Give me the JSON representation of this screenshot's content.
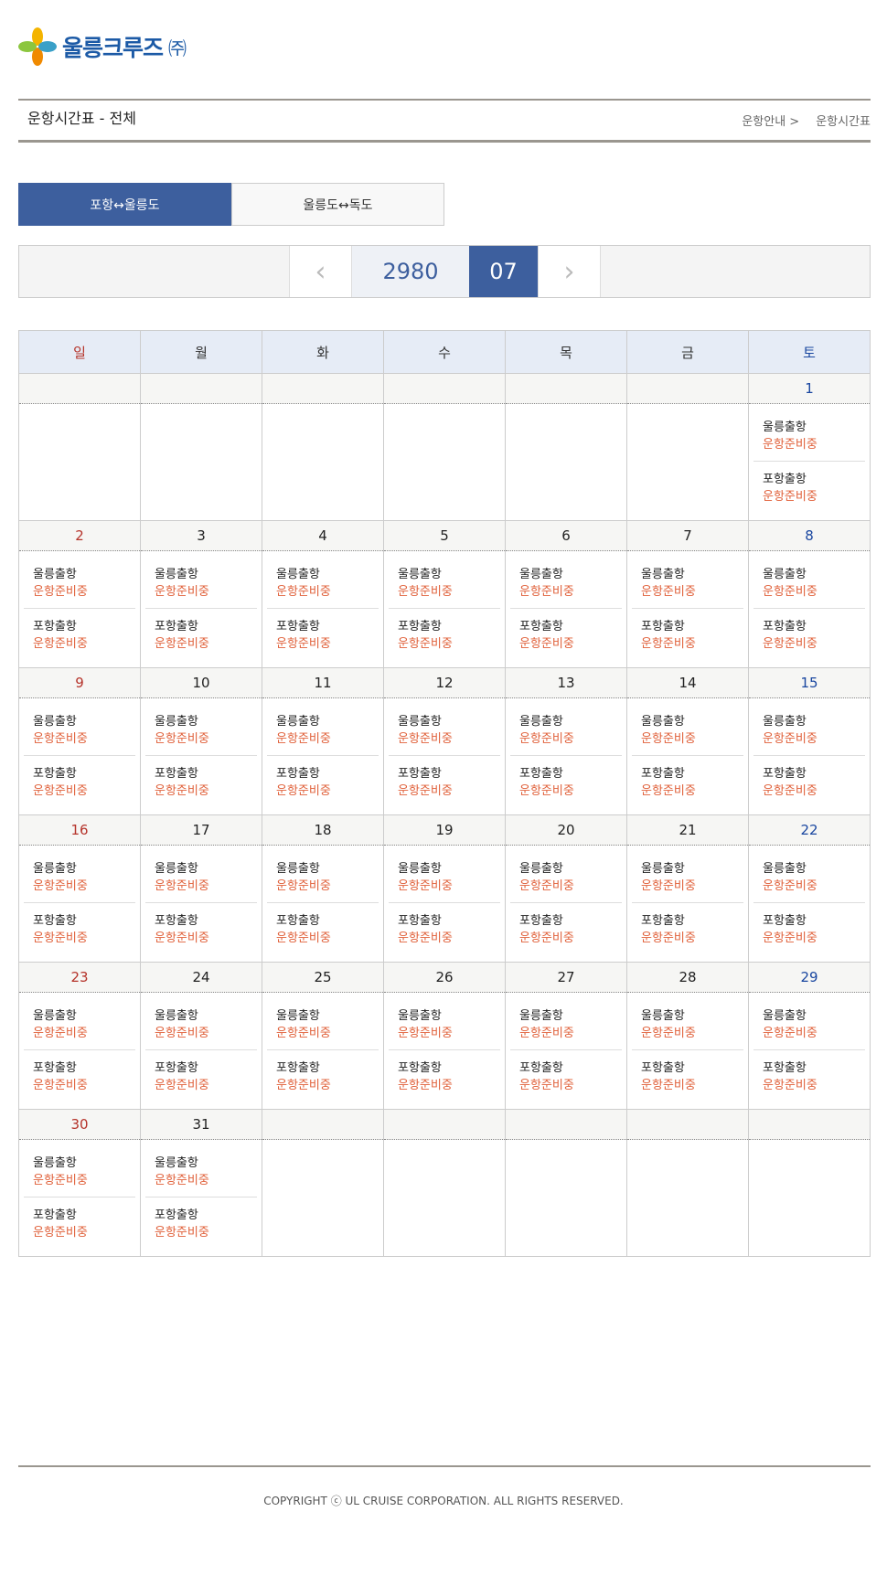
{
  "logo": {
    "text": "울릉크루즈",
    "suffix": "㈜"
  },
  "header": {
    "title": "운항시간표 - 전체",
    "breadcrumb": [
      "운항안내 >",
      "운항시간표"
    ]
  },
  "tabs": [
    {
      "label": "포항↔울릉도",
      "active": true
    },
    {
      "label": "울릉도↔독도",
      "active": false
    }
  ],
  "nav": {
    "prev_icon": "chevron-left-icon",
    "next_icon": "chevron-right-icon",
    "year": "2980",
    "month": "07"
  },
  "colors": {
    "accent": "#3d5f9e",
    "sunday": "#b5332a",
    "saturday": "#1a47a0",
    "status": "#e0603a"
  },
  "calendar": {
    "weekdays": [
      "일",
      "월",
      "화",
      "수",
      "목",
      "금",
      "토"
    ],
    "weeks": [
      [
        null,
        null,
        null,
        null,
        null,
        null,
        {
          "day": "1",
          "trips": [
            {
              "label": "울릉출항",
              "status": "운항준비중"
            },
            {
              "label": "포항출항",
              "status": "운항준비중"
            }
          ]
        }
      ],
      [
        {
          "day": "2",
          "trips": [
            {
              "label": "울릉출항",
              "status": "운항준비중"
            },
            {
              "label": "포항출항",
              "status": "운항준비중"
            }
          ]
        },
        {
          "day": "3",
          "trips": [
            {
              "label": "울릉출항",
              "status": "운항준비중"
            },
            {
              "label": "포항출항",
              "status": "운항준비중"
            }
          ]
        },
        {
          "day": "4",
          "trips": [
            {
              "label": "울릉출항",
              "status": "운항준비중"
            },
            {
              "label": "포항출항",
              "status": "운항준비중"
            }
          ]
        },
        {
          "day": "5",
          "trips": [
            {
              "label": "울릉출항",
              "status": "운항준비중"
            },
            {
              "label": "포항출항",
              "status": "운항준비중"
            }
          ]
        },
        {
          "day": "6",
          "trips": [
            {
              "label": "울릉출항",
              "status": "운항준비중"
            },
            {
              "label": "포항출항",
              "status": "운항준비중"
            }
          ]
        },
        {
          "day": "7",
          "trips": [
            {
              "label": "울릉출항",
              "status": "운항준비중"
            },
            {
              "label": "포항출항",
              "status": "운항준비중"
            }
          ]
        },
        {
          "day": "8",
          "trips": [
            {
              "label": "울릉출항",
              "status": "운항준비중"
            },
            {
              "label": "포항출항",
              "status": "운항준비중"
            }
          ]
        }
      ],
      [
        {
          "day": "9",
          "trips": [
            {
              "label": "울릉출항",
              "status": "운항준비중"
            },
            {
              "label": "포항출항",
              "status": "운항준비중"
            }
          ]
        },
        {
          "day": "10",
          "trips": [
            {
              "label": "울릉출항",
              "status": "운항준비중"
            },
            {
              "label": "포항출항",
              "status": "운항준비중"
            }
          ]
        },
        {
          "day": "11",
          "trips": [
            {
              "label": "울릉출항",
              "status": "운항준비중"
            },
            {
              "label": "포항출항",
              "status": "운항준비중"
            }
          ]
        },
        {
          "day": "12",
          "trips": [
            {
              "label": "울릉출항",
              "status": "운항준비중"
            },
            {
              "label": "포항출항",
              "status": "운항준비중"
            }
          ]
        },
        {
          "day": "13",
          "trips": [
            {
              "label": "울릉출항",
              "status": "운항준비중"
            },
            {
              "label": "포항출항",
              "status": "운항준비중"
            }
          ]
        },
        {
          "day": "14",
          "trips": [
            {
              "label": "울릉출항",
              "status": "운항준비중"
            },
            {
              "label": "포항출항",
              "status": "운항준비중"
            }
          ]
        },
        {
          "day": "15",
          "trips": [
            {
              "label": "울릉출항",
              "status": "운항준비중"
            },
            {
              "label": "포항출항",
              "status": "운항준비중"
            }
          ]
        }
      ],
      [
        {
          "day": "16",
          "trips": [
            {
              "label": "울릉출항",
              "status": "운항준비중"
            },
            {
              "label": "포항출항",
              "status": "운항준비중"
            }
          ]
        },
        {
          "day": "17",
          "trips": [
            {
              "label": "울릉출항",
              "status": "운항준비중"
            },
            {
              "label": "포항출항",
              "status": "운항준비중"
            }
          ]
        },
        {
          "day": "18",
          "trips": [
            {
              "label": "울릉출항",
              "status": "운항준비중"
            },
            {
              "label": "포항출항",
              "status": "운항준비중"
            }
          ]
        },
        {
          "day": "19",
          "trips": [
            {
              "label": "울릉출항",
              "status": "운항준비중"
            },
            {
              "label": "포항출항",
              "status": "운항준비중"
            }
          ]
        },
        {
          "day": "20",
          "trips": [
            {
              "label": "울릉출항",
              "status": "운항준비중"
            },
            {
              "label": "포항출항",
              "status": "운항준비중"
            }
          ]
        },
        {
          "day": "21",
          "trips": [
            {
              "label": "울릉출항",
              "status": "운항준비중"
            },
            {
              "label": "포항출항",
              "status": "운항준비중"
            }
          ]
        },
        {
          "day": "22",
          "trips": [
            {
              "label": "울릉출항",
              "status": "운항준비중"
            },
            {
              "label": "포항출항",
              "status": "운항준비중"
            }
          ]
        }
      ],
      [
        {
          "day": "23",
          "trips": [
            {
              "label": "울릉출항",
              "status": "운항준비중"
            },
            {
              "label": "포항출항",
              "status": "운항준비중"
            }
          ]
        },
        {
          "day": "24",
          "trips": [
            {
              "label": "울릉출항",
              "status": "운항준비중"
            },
            {
              "label": "포항출항",
              "status": "운항준비중"
            }
          ]
        },
        {
          "day": "25",
          "trips": [
            {
              "label": "울릉출항",
              "status": "운항준비중"
            },
            {
              "label": "포항출항",
              "status": "운항준비중"
            }
          ]
        },
        {
          "day": "26",
          "trips": [
            {
              "label": "울릉출항",
              "status": "운항준비중"
            },
            {
              "label": "포항출항",
              "status": "운항준비중"
            }
          ]
        },
        {
          "day": "27",
          "trips": [
            {
              "label": "울릉출항",
              "status": "운항준비중"
            },
            {
              "label": "포항출항",
              "status": "운항준비중"
            }
          ]
        },
        {
          "day": "28",
          "trips": [
            {
              "label": "울릉출항",
              "status": "운항준비중"
            },
            {
              "label": "포항출항",
              "status": "운항준비중"
            }
          ]
        },
        {
          "day": "29",
          "trips": [
            {
              "label": "울릉출항",
              "status": "운항준비중"
            },
            {
              "label": "포항출항",
              "status": "운항준비중"
            }
          ]
        }
      ],
      [
        {
          "day": "30",
          "trips": [
            {
              "label": "울릉출항",
              "status": "운항준비중"
            },
            {
              "label": "포항출항",
              "status": "운항준비중"
            }
          ]
        },
        {
          "day": "31",
          "trips": [
            {
              "label": "울릉출항",
              "status": "운항준비중"
            },
            {
              "label": "포항출항",
              "status": "운항준비중"
            }
          ]
        },
        null,
        null,
        null,
        null,
        null
      ]
    ]
  },
  "footer": {
    "copyright": "COPYRIGHT ⓒ UL CRUISE CORPORATION. ALL RIGHTS RESERVED."
  }
}
